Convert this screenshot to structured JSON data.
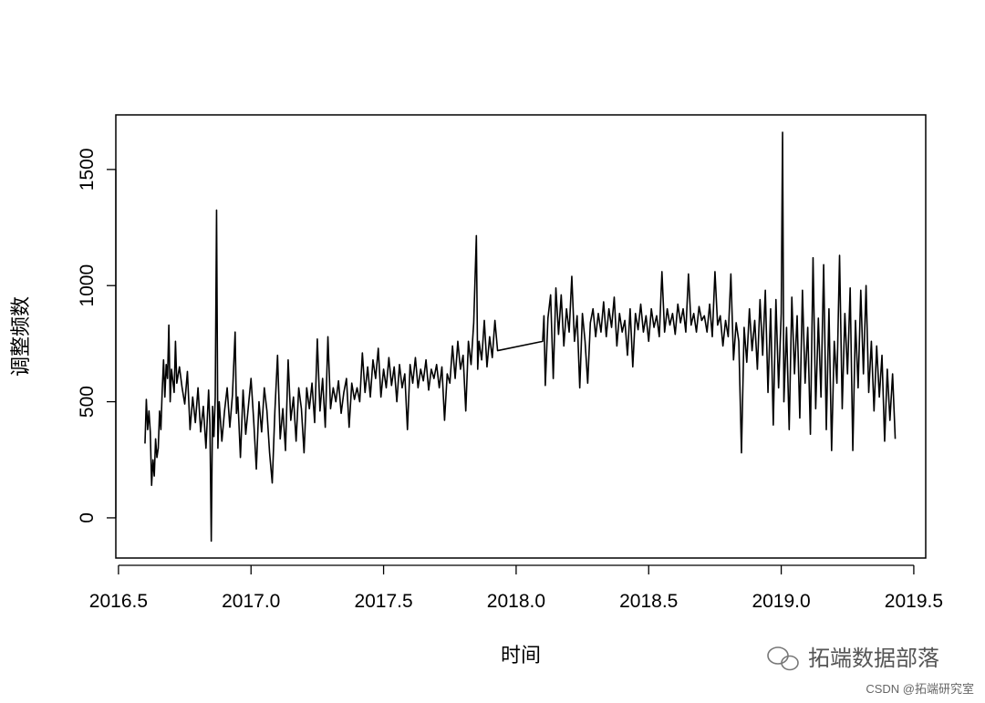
{
  "chart_data": {
    "type": "line",
    "xlabel": "时间",
    "ylabel": "调整频数",
    "watermark": "拓端数据部落",
    "credit": "CSDN @拓端研究室",
    "color": "#000000",
    "xlim": [
      2016.49,
      2019.545
    ],
    "ylim": [
      -173,
      1735
    ],
    "xticks": [
      2016.5,
      {
        "value": 2017,
        "label": "2017.0"
      },
      2017.5,
      {
        "value": 2018,
        "label": "2018.0"
      },
      2018.5,
      {
        "value": 2019,
        "label": "2019.0"
      },
      2019.5
    ],
    "yticks": [
      0,
      500,
      1000,
      1500
    ],
    "series": [
      {
        "name": "调整频数",
        "color": "#000000",
        "x": [
          2016.6,
          2016.605,
          2016.61,
          2016.615,
          2016.62,
          2016.625,
          2016.63,
          2016.635,
          2016.64,
          2016.645,
          2016.65,
          2016.655,
          2016.66,
          2016.665,
          2016.67,
          2016.675,
          2016.68,
          2016.685,
          2016.69,
          2016.695,
          2016.7,
          2016.71,
          2016.715,
          2016.72,
          2016.73,
          2016.74,
          2016.75,
          2016.76,
          2016.77,
          2016.78,
          2016.79,
          2016.8,
          2016.81,
          2016.82,
          2016.83,
          2016.84,
          2016.845,
          2016.85,
          2016.855,
          2016.86,
          2016.865,
          2016.87,
          2016.875,
          2016.88,
          2016.89,
          2016.9,
          2016.91,
          2016.92,
          2016.93,
          2016.94,
          2016.945,
          2016.95,
          2016.96,
          2016.97,
          2016.98,
          2016.99,
          2017.0,
          2017.01,
          2017.02,
          2017.03,
          2017.04,
          2017.05,
          2017.06,
          2017.07,
          2017.08,
          2017.09,
          2017.1,
          2017.11,
          2017.12,
          2017.13,
          2017.14,
          2017.15,
          2017.16,
          2017.17,
          2017.18,
          2017.19,
          2017.2,
          2017.21,
          2017.22,
          2017.23,
          2017.24,
          2017.25,
          2017.26,
          2017.27,
          2017.28,
          2017.29,
          2017.3,
          2017.31,
          2017.32,
          2017.33,
          2017.34,
          2017.35,
          2017.36,
          2017.37,
          2017.38,
          2017.39,
          2017.4,
          2017.41,
          2017.42,
          2017.43,
          2017.44,
          2017.45,
          2017.46,
          2017.47,
          2017.48,
          2017.49,
          2017.5,
          2017.51,
          2017.52,
          2017.53,
          2017.54,
          2017.55,
          2017.56,
          2017.57,
          2017.58,
          2017.59,
          2017.6,
          2017.61,
          2017.62,
          2017.63,
          2017.64,
          2017.65,
          2017.66,
          2017.67,
          2017.68,
          2017.69,
          2017.7,
          2017.71,
          2017.72,
          2017.73,
          2017.74,
          2017.75,
          2017.76,
          2017.77,
          2017.78,
          2017.79,
          2017.8,
          2017.81,
          2017.82,
          2017.83,
          2017.84,
          2017.85,
          2017.855,
          2017.86,
          2017.87,
          2017.88,
          2017.89,
          2017.9,
          2017.91,
          2017.92,
          2017.93,
          2018.1,
          2018.105,
          2018.11,
          2018.12,
          2018.13,
          2018.14,
          2018.15,
          2018.16,
          2018.17,
          2018.18,
          2018.19,
          2018.2,
          2018.21,
          2018.22,
          2018.23,
          2018.24,
          2018.25,
          2018.26,
          2018.27,
          2018.28,
          2018.29,
          2018.3,
          2018.31,
          2018.32,
          2018.33,
          2018.34,
          2018.35,
          2018.36,
          2018.37,
          2018.38,
          2018.39,
          2018.4,
          2018.41,
          2018.42,
          2018.43,
          2018.44,
          2018.45,
          2018.46,
          2018.47,
          2018.48,
          2018.49,
          2018.5,
          2018.51,
          2018.52,
          2018.53,
          2018.54,
          2018.55,
          2018.56,
          2018.57,
          2018.58,
          2018.59,
          2018.6,
          2018.61,
          2018.62,
          2018.63,
          2018.64,
          2018.65,
          2018.66,
          2018.67,
          2018.68,
          2018.69,
          2018.7,
          2018.71,
          2018.72,
          2018.73,
          2018.74,
          2018.75,
          2018.76,
          2018.77,
          2018.78,
          2018.79,
          2018.8,
          2018.81,
          2018.82,
          2018.83,
          2018.84,
          2018.85,
          2018.86,
          2018.87,
          2018.88,
          2018.89,
          2018.9,
          2018.91,
          2018.92,
          2018.93,
          2018.94,
          2018.95,
          2018.96,
          2018.97,
          2018.98,
          2018.99,
          2019.0,
          2019.005,
          2019.01,
          2019.02,
          2019.03,
          2019.04,
          2019.05,
          2019.06,
          2019.07,
          2019.08,
          2019.09,
          2019.1,
          2019.11,
          2019.12,
          2019.13,
          2019.14,
          2019.15,
          2019.16,
          2019.17,
          2019.18,
          2019.19,
          2019.2,
          2019.21,
          2019.22,
          2019.23,
          2019.24,
          2019.25,
          2019.26,
          2019.27,
          2019.28,
          2019.29,
          2019.3,
          2019.31,
          2019.32,
          2019.33,
          2019.34,
          2019.35,
          2019.36,
          2019.37,
          2019.38,
          2019.39,
          2019.4,
          2019.41,
          2019.42,
          2019.43
        ],
        "values": [
          320,
          510,
          380,
          460,
          370,
          140,
          250,
          180,
          340,
          260,
          300,
          460,
          380,
          550,
          680,
          520,
          660,
          600,
          830,
          500,
          640,
          540,
          760,
          580,
          650,
          560,
          490,
          630,
          380,
          520,
          410,
          560,
          370,
          480,
          300,
          550,
          400,
          -100,
          480,
          350,
          520,
          1325,
          300,
          500,
          330,
          460,
          560,
          390,
          530,
          800,
          450,
          520,
          260,
          550,
          360,
          480,
          600,
          420,
          210,
          500,
          370,
          560,
          460,
          280,
          150,
          460,
          700,
          340,
          470,
          290,
          680,
          420,
          520,
          330,
          560,
          470,
          280,
          560,
          470,
          580,
          410,
          770,
          460,
          600,
          390,
          780,
          470,
          560,
          500,
          590,
          450,
          540,
          600,
          390,
          580,
          510,
          560,
          500,
          710,
          540,
          650,
          520,
          680,
          600,
          730,
          520,
          640,
          560,
          690,
          570,
          650,
          500,
          660,
          560,
          620,
          380,
          660,
          580,
          690,
          560,
          640,
          590,
          680,
          550,
          640,
          600,
          660,
          560,
          650,
          420,
          620,
          580,
          740,
          600,
          760,
          640,
          700,
          460,
          760,
          660,
          840,
          1215,
          640,
          760,
          680,
          850,
          650,
          780,
          690,
          850,
          720,
          760,
          870,
          570,
          860,
          960,
          600,
          990,
          790,
          960,
          740,
          900,
          800,
          1040,
          760,
          870,
          560,
          880,
          760,
          580,
          840,
          900,
          780,
          880,
          800,
          930,
          780,
          900,
          820,
          950,
          740,
          880,
          800,
          850,
          700,
          900,
          650,
          880,
          810,
          920,
          800,
          870,
          760,
          900,
          820,
          870,
          780,
          1060,
          800,
          900,
          830,
          880,
          790,
          920,
          840,
          900,
          800,
          1050,
          830,
          880,
          800,
          910,
          850,
          870,
          800,
          920,
          780,
          1060,
          830,
          870,
          740,
          850,
          780,
          1050,
          680,
          840,
          760,
          280,
          820,
          670,
          900,
          720,
          850,
          640,
          940,
          700,
          980,
          540,
          900,
          400,
          940,
          560,
          880,
          1660,
          500,
          820,
          380,
          950,
          620,
          870,
          430,
          980,
          580,
          820,
          360,
          1120,
          470,
          860,
          520,
          1090,
          380,
          900,
          290,
          760,
          580,
          1130,
          470,
          880,
          620,
          990,
          290,
          850,
          560,
          980,
          620,
          1000,
          540,
          760,
          460,
          740,
          520,
          700,
          330,
          640,
          420,
          620,
          340
        ]
      }
    ]
  }
}
